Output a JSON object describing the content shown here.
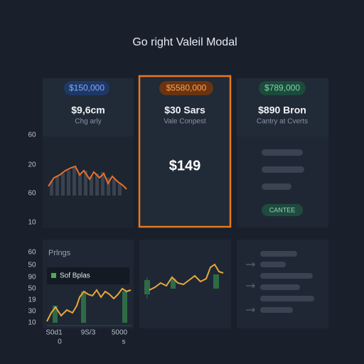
{
  "header": {
    "title": "Go right Valeil Modal"
  },
  "cards": [
    {
      "badge": "$150,000",
      "value": "$9,6cm",
      "caption": "Chg arly"
    },
    {
      "badge": "$5580,000",
      "value": "$30 Sars",
      "caption": "Vale Conpest",
      "amount": "$149"
    },
    {
      "badge": "$789,000",
      "value": "$890 Bron",
      "caption": "Cantry at Cverts",
      "button": "CANTEE"
    }
  ],
  "top_axis": [
    "60",
    "20",
    "60",
    "10"
  ],
  "bottom_axis": [
    "60",
    "50",
    "90",
    "50",
    "19",
    "30",
    "10"
  ],
  "bottom_panel": {
    "title": "Prlngs",
    "tooltip": "Sof Bplas",
    "x_labels": [
      "S0d1",
      "9S/3",
      "5000"
    ],
    "x_sub_labels": [
      "0",
      "s"
    ]
  }
}
